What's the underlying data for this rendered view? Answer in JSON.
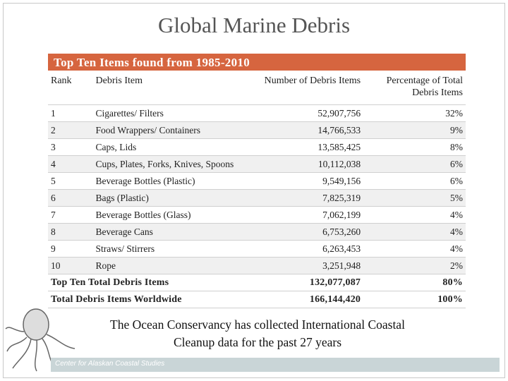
{
  "title": "Global Marine Debris",
  "table": {
    "caption": "Top Ten Items found from 1985-2010",
    "headers": [
      "Rank",
      "Debris Item",
      "Number of Debris Items",
      "Percentage of Total Debris Items"
    ],
    "rows": [
      [
        "1",
        "Cigarettes/ Filters",
        "52,907,756",
        "32%"
      ],
      [
        "2",
        "Food Wrappers/ Containers",
        "14,766,533",
        "9%"
      ],
      [
        "3",
        "Caps, Lids",
        "13,585,425",
        "8%"
      ],
      [
        "4",
        "Cups, Plates, Forks, Knives, Spoons",
        "10,112,038",
        "6%"
      ],
      [
        "5",
        "Beverage Bottles (Plastic)",
        "9,549,156",
        "6%"
      ],
      [
        "6",
        "Bags (Plastic)",
        "7,825,319",
        "5%"
      ],
      [
        "7",
        "Beverage Bottles (Glass)",
        "7,062,199",
        "4%"
      ],
      [
        "8",
        "Beverage Cans",
        "6,753,260",
        "4%"
      ],
      [
        "9",
        "Straws/ Stirrers",
        "6,263,453",
        "4%"
      ],
      [
        "10",
        "Rope",
        "3,251,948",
        "2%"
      ]
    ],
    "totals": [
      [
        "Top Ten Total Debris Items",
        "132,077,087",
        "80%"
      ],
      [
        "Total Debris Items Worldwide",
        "166,144,420",
        "100%"
      ]
    ]
  },
  "note": "The Ocean Conservancy has collected International Coastal Cleanup data for the past 27 years",
  "footer": "Center for Alaskan Coastal Studies"
}
